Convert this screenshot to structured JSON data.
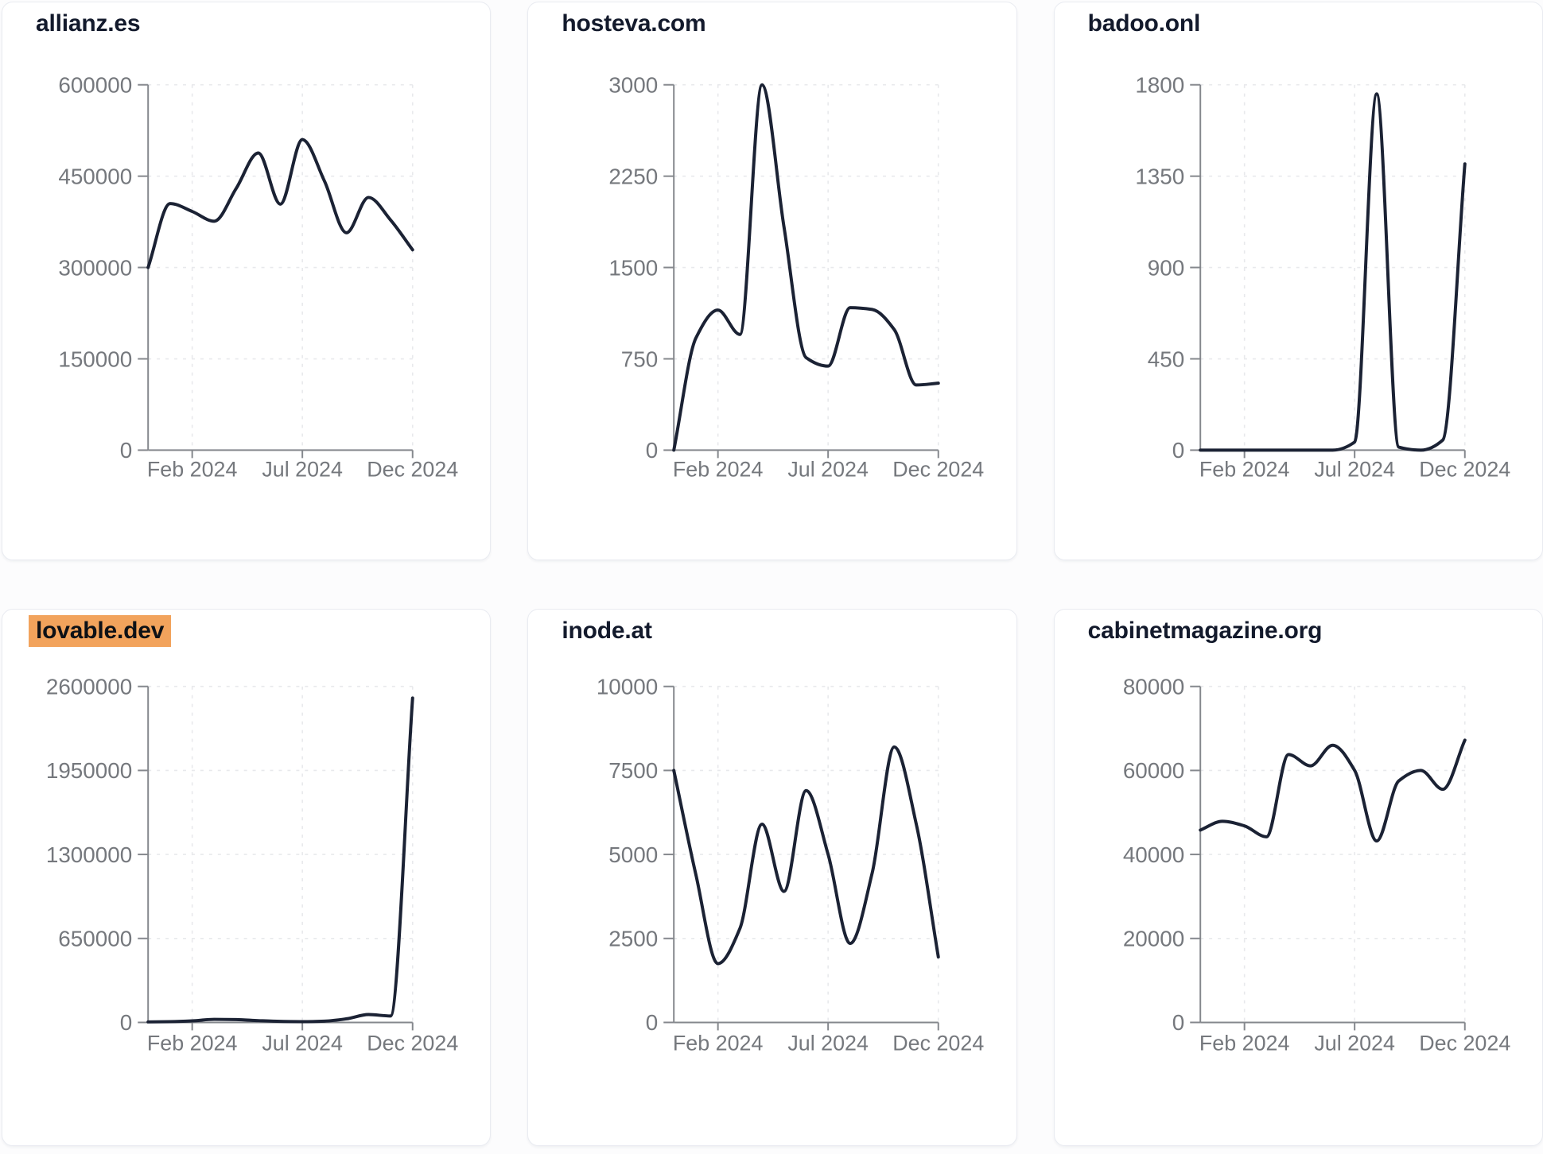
{
  "page": {
    "background": "#fcfcfd"
  },
  "theme": {
    "line_color": "#1b2234",
    "title_color": "#131a2c",
    "highlight_bg": "#f2a35c",
    "highlight_text": "#0e1116",
    "tick_label_color": "#75787d",
    "axis_color": "#85888d",
    "grid_color": "#e8e9ec",
    "card_bg": "#ffffff",
    "card_border": "#e9ebf1"
  },
  "x_axis": {
    "tick_labels": [
      "Feb 2024",
      "Jul 2024",
      "Dec 2024"
    ]
  },
  "chart_data": [
    {
      "type": "line",
      "title": "allianz.es",
      "title_highlighted": false,
      "x": [
        "Dec 2023",
        "Jan 2024",
        "Feb 2024",
        "Mar 2024",
        "Apr 2024",
        "May 2024",
        "Jun 2024",
        "Jul 2024",
        "Aug 2024",
        "Sep 2024",
        "Oct 2024",
        "Nov 2024",
        "Dec 2024"
      ],
      "values": [
        300000,
        405000,
        392000,
        376000,
        430000,
        488000,
        404000,
        510000,
        442000,
        357000,
        415000,
        378000,
        329000
      ],
      "ylim": [
        0,
        600000
      ],
      "yticks": [
        0,
        150000,
        300000,
        450000,
        600000
      ],
      "xticks": [
        "Feb 2024",
        "Jul 2024",
        "Dec 2024"
      ],
      "xtick_indices": [
        2,
        7,
        12
      ],
      "grid": true,
      "legend": false
    },
    {
      "type": "line",
      "title": "hosteva.com",
      "title_highlighted": false,
      "x": [
        "Dec 2023",
        "Jan 2024",
        "Feb 2024",
        "Mar 2024",
        "Apr 2024",
        "May 2024",
        "Jun 2024",
        "Jul 2024",
        "Aug 2024",
        "Sep 2024",
        "Oct 2024",
        "Nov 2024",
        "Dec 2024"
      ],
      "values": [
        0,
        920,
        1150,
        950,
        3000,
        1830,
        760,
        690,
        1170,
        1155,
        990,
        535,
        550
      ],
      "ylim": [
        0,
        3000
      ],
      "yticks": [
        0,
        750,
        1500,
        2250,
        3000
      ],
      "xticks": [
        "Feb 2024",
        "Jul 2024",
        "Dec 2024"
      ],
      "xtick_indices": [
        2,
        7,
        12
      ],
      "grid": true,
      "legend": false
    },
    {
      "type": "line",
      "title": "badoo.onl",
      "title_highlighted": false,
      "x": [
        "Dec 2023",
        "Jan 2024",
        "Feb 2024",
        "Mar 2024",
        "Apr 2024",
        "May 2024",
        "Jun 2024",
        "Jul 2024",
        "Aug 2024",
        "Sep 2024",
        "Oct 2024",
        "Nov 2024",
        "Dec 2024"
      ],
      "values": [
        0,
        0,
        0,
        0,
        0,
        0,
        0,
        40,
        1755,
        15,
        0,
        50,
        1410
      ],
      "ylim": [
        0,
        1800
      ],
      "yticks": [
        0,
        450,
        900,
        1350,
        1800
      ],
      "xticks": [
        "Feb 2024",
        "Jul 2024",
        "Dec 2024"
      ],
      "xtick_indices": [
        2,
        7,
        12
      ],
      "grid": true,
      "legend": false
    },
    {
      "type": "line",
      "title": "lovable.dev",
      "title_highlighted": true,
      "x": [
        "Dec 2023",
        "Jan 2024",
        "Feb 2024",
        "Mar 2024",
        "Apr 2024",
        "May 2024",
        "Jun 2024",
        "Jul 2024",
        "Aug 2024",
        "Sep 2024",
        "Oct 2024",
        "Nov 2024",
        "Dec 2024"
      ],
      "values": [
        4000,
        6000,
        12000,
        24000,
        22000,
        14000,
        8000,
        6000,
        10000,
        28000,
        61000,
        50000,
        2510000
      ],
      "ylim": [
        0,
        2600000
      ],
      "yticks": [
        0,
        650000,
        1300000,
        1950000,
        2600000
      ],
      "xticks": [
        "Feb 2024",
        "Jul 2024",
        "Dec 2024"
      ],
      "xtick_indices": [
        2,
        7,
        12
      ],
      "grid": true,
      "legend": false
    },
    {
      "type": "line",
      "title": "inode.at",
      "title_highlighted": false,
      "x": [
        "Dec 2023",
        "Jan 2024",
        "Feb 2024",
        "Mar 2024",
        "Apr 2024",
        "May 2024",
        "Jun 2024",
        "Jul 2024",
        "Aug 2024",
        "Sep 2024",
        "Oct 2024",
        "Nov 2024",
        "Dec 2024"
      ],
      "values": [
        7500,
        4400,
        1750,
        2800,
        5900,
        3900,
        6900,
        5000,
        2350,
        4450,
        8200,
        5900,
        1950
      ],
      "ylim": [
        0,
        10000
      ],
      "yticks": [
        0,
        2500,
        5000,
        7500,
        10000
      ],
      "xticks": [
        "Feb 2024",
        "Jul 2024",
        "Dec 2024"
      ],
      "xtick_indices": [
        2,
        7,
        12
      ],
      "grid": true,
      "legend": false
    },
    {
      "type": "line",
      "title": "cabinetmagazine.org",
      "title_highlighted": false,
      "x": [
        "Dec 2023",
        "Jan 2024",
        "Feb 2024",
        "Mar 2024",
        "Apr 2024",
        "May 2024",
        "Jun 2024",
        "Jul 2024",
        "Aug 2024",
        "Sep 2024",
        "Oct 2024",
        "Nov 2024",
        "Dec 2024"
      ],
      "values": [
        45800,
        47900,
        46800,
        44200,
        63800,
        61100,
        66000,
        60000,
        43200,
        57500,
        60000,
        55500,
        67200
      ],
      "ylim": [
        0,
        80000
      ],
      "yticks": [
        0,
        20000,
        40000,
        60000,
        80000
      ],
      "xticks": [
        "Feb 2024",
        "Jul 2024",
        "Dec 2024"
      ],
      "xtick_indices": [
        2,
        7,
        12
      ],
      "grid": true,
      "legend": false
    }
  ]
}
